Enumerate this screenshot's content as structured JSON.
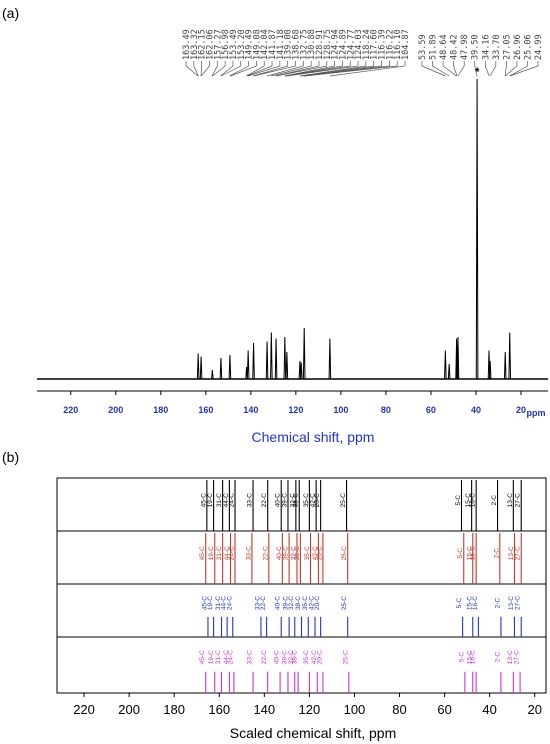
{
  "chart_data": [
    {
      "panel": "(a)",
      "type": "line",
      "xlabel": "Chemical shift, ppm",
      "x_unit_label": "ppm",
      "xlim": [
        235,
        8
      ],
      "x_ticks": [
        220,
        200,
        180,
        160,
        140,
        120,
        100,
        80,
        60,
        40,
        20
      ],
      "peak_labels": [
        "163.49",
        "163.32",
        "162.15",
        "162.06",
        "157.27",
        "156.98",
        "153.49",
        "153.20",
        "149.49",
        "149.08",
        "142.04",
        "141.87",
        "141.18",
        "139.00",
        "138.68",
        "132.75",
        "130.88",
        "128.91",
        "128.75",
        "124.94",
        "124.89",
        "124.77",
        "124.03",
        "118.24",
        "117.60",
        "116.39",
        "116.22",
        "116.10",
        "104.87",
        "53.59",
        "51.89",
        "48.64",
        "48.42",
        "47.98",
        "39.50",
        "34.16",
        "33.70",
        "27.05",
        "26.96",
        "25.06",
        "24.99"
      ],
      "solvent_marker": "*",
      "peaks": [
        {
          "x": 163.4,
          "h": 0.085
        },
        {
          "x": 162.1,
          "h": 0.075
        },
        {
          "x": 157.1,
          "h": 0.03
        },
        {
          "x": 153.3,
          "h": 0.07
        },
        {
          "x": 149.3,
          "h": 0.08
        },
        {
          "x": 141.9,
          "h": 0.04
        },
        {
          "x": 141.2,
          "h": 0.095
        },
        {
          "x": 138.8,
          "h": 0.12
        },
        {
          "x": 132.8,
          "h": 0.125
        },
        {
          "x": 130.9,
          "h": 0.155
        },
        {
          "x": 128.8,
          "h": 0.135
        },
        {
          "x": 124.9,
          "h": 0.14
        },
        {
          "x": 124.0,
          "h": 0.09
        },
        {
          "x": 118.2,
          "h": 0.06
        },
        {
          "x": 117.6,
          "h": 0.055
        },
        {
          "x": 116.3,
          "h": 0.17
        },
        {
          "x": 104.9,
          "h": 0.135
        },
        {
          "x": 53.6,
          "h": 0.095
        },
        {
          "x": 51.9,
          "h": 0.05
        },
        {
          "x": 48.6,
          "h": 0.135
        },
        {
          "x": 48.4,
          "h": 0.11
        },
        {
          "x": 48.0,
          "h": 0.14
        },
        {
          "x": 39.5,
          "h": 1.0
        },
        {
          "x": 34.2,
          "h": 0.095
        },
        {
          "x": 33.7,
          "h": 0.06
        },
        {
          "x": 27.0,
          "h": 0.09
        },
        {
          "x": 25.0,
          "h": 0.155
        }
      ]
    },
    {
      "panel": "(b)",
      "type": "bar",
      "xlabel": "Scaled chemical shift, ppm",
      "xlim": [
        232,
        15
      ],
      "x_ticks": [
        220,
        200,
        180,
        160,
        140,
        120,
        100,
        80,
        60,
        40,
        20
      ],
      "series": [
        {
          "color": "#000000",
          "lines": [
            {
              "x": 165.5,
              "label": "45-C"
            },
            {
              "x": 162.5,
              "label": "19-C"
            },
            {
              "x": 158.5,
              "label": "31-C"
            },
            {
              "x": 155.5,
              "label": "44-C"
            },
            {
              "x": 153.0,
              "label": "24-C"
            },
            {
              "x": 145.0,
              "label": "33-C"
            },
            {
              "x": 138.5,
              "label": "22-C"
            },
            {
              "x": 132.5,
              "label": "40-C"
            },
            {
              "x": 129.5,
              "label": "39-C"
            },
            {
              "x": 126.0,
              "label": "32-C"
            },
            {
              "x": 124.5,
              "label": "38-C"
            },
            {
              "x": 120.0,
              "label": "35-C"
            },
            {
              "x": 117.0,
              "label": "42-C"
            },
            {
              "x": 115.0,
              "label": "20-C"
            },
            {
              "x": 103.5,
              "label": "25-C"
            },
            {
              "x": 52.5,
              "label": "5-C"
            },
            {
              "x": 48.0,
              "label": "15-C"
            },
            {
              "x": 46.0,
              "label": "16-C"
            },
            {
              "x": 36.5,
              "label": "2-C"
            },
            {
              "x": 29.5,
              "label": "13-C"
            },
            {
              "x": 26.0,
              "label": "27-C"
            }
          ]
        },
        {
          "color": "#c0392b",
          "lines": [
            {
              "x": 166.0,
              "label": "45-C"
            },
            {
              "x": 162.0,
              "label": "19-C"
            },
            {
              "x": 158.5,
              "label": "31-C"
            },
            {
              "x": 155.0,
              "label": "44-C"
            },
            {
              "x": 153.0,
              "label": "24-C"
            },
            {
              "x": 145.5,
              "label": "33-C"
            },
            {
              "x": 138.0,
              "label": "22-C"
            },
            {
              "x": 132.0,
              "label": "40-C"
            },
            {
              "x": 129.0,
              "label": "39-C"
            },
            {
              "x": 125.5,
              "label": "32-C"
            },
            {
              "x": 124.0,
              "label": "38-C"
            },
            {
              "x": 119.5,
              "label": "35-C"
            },
            {
              "x": 116.0,
              "label": "42-C"
            },
            {
              "x": 114.0,
              "label": "20-C"
            },
            {
              "x": 103.0,
              "label": "25-C"
            },
            {
              "x": 51.5,
              "label": "5-C"
            },
            {
              "x": 47.5,
              "label": "15-C"
            },
            {
              "x": 46.0,
              "label": "16-C"
            },
            {
              "x": 35.5,
              "label": "2-C"
            },
            {
              "x": 29.0,
              "label": "13-C"
            },
            {
              "x": 26.0,
              "label": "27-C"
            }
          ]
        },
        {
          "color": "#2233cc",
          "lines": [
            {
              "x": 165.0,
              "label": "45-C"
            },
            {
              "x": 162.5,
              "label": "19-C"
            },
            {
              "x": 159.0,
              "label": "31-C"
            },
            {
              "x": 156.5,
              "label": "44-C"
            },
            {
              "x": 154.0,
              "label": "24-C"
            },
            {
              "x": 141.5,
              "label": "33-C"
            },
            {
              "x": 139.0,
              "label": "22-C"
            },
            {
              "x": 132.5,
              "label": "40-C"
            },
            {
              "x": 129.0,
              "label": "39-C"
            },
            {
              "x": 126.5,
              "label": "32-C"
            },
            {
              "x": 123.5,
              "label": "38-C"
            },
            {
              "x": 120.5,
              "label": "35-C"
            },
            {
              "x": 117.5,
              "label": "42-C"
            },
            {
              "x": 115.0,
              "label": "20-C"
            },
            {
              "x": 103.0,
              "label": "25-C"
            },
            {
              "x": 52.0,
              "label": "5-C"
            },
            {
              "x": 47.5,
              "label": "15-C"
            },
            {
              "x": 45.0,
              "label": "16-C"
            },
            {
              "x": 35.0,
              "label": "2-C"
            },
            {
              "x": 29.0,
              "label": "13-C"
            },
            {
              "x": 26.0,
              "label": "27-C"
            }
          ]
        },
        {
          "color": "#cc33cc",
          "lines": [
            {
              "x": 166.0,
              "label": "45-C"
            },
            {
              "x": 162.0,
              "label": "19-C"
            },
            {
              "x": 159.0,
              "label": "31-C"
            },
            {
              "x": 155.5,
              "label": "44-C"
            },
            {
              "x": 153.5,
              "label": "24-C"
            },
            {
              "x": 145.0,
              "label": "33-C"
            },
            {
              "x": 138.5,
              "label": "22-C"
            },
            {
              "x": 133.0,
              "label": "40-C"
            },
            {
              "x": 129.5,
              "label": "39-C"
            },
            {
              "x": 126.5,
              "label": "32-C"
            },
            {
              "x": 125.0,
              "label": "38-C"
            },
            {
              "x": 120.0,
              "label": "35-C"
            },
            {
              "x": 116.5,
              "label": "42-C"
            },
            {
              "x": 114.0,
              "label": "20-C"
            },
            {
              "x": 102.5,
              "label": "25-C"
            },
            {
              "x": 51.0,
              "label": "5-C"
            },
            {
              "x": 47.5,
              "label": "15-C"
            },
            {
              "x": 46.0,
              "label": "16-C"
            },
            {
              "x": 35.0,
              "label": "2-C"
            },
            {
              "x": 29.5,
              "label": "13-C"
            },
            {
              "x": 26.5,
              "label": "27-C"
            }
          ]
        }
      ]
    }
  ]
}
